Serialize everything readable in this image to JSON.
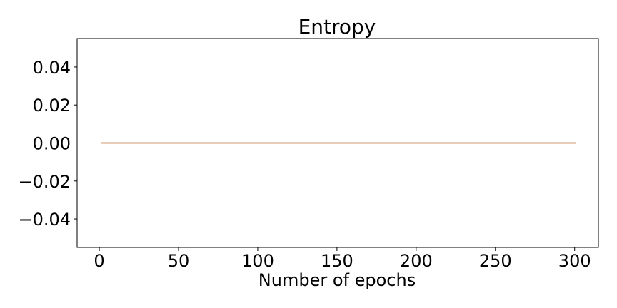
{
  "chart_data": {
    "type": "line",
    "title": "Entropy",
    "xlabel": "Number of epochs",
    "ylabel": "",
    "xlim": [
      -14,
      315
    ],
    "ylim": [
      -0.055,
      0.055
    ],
    "xticks": [
      0,
      50,
      100,
      150,
      200,
      250,
      300
    ],
    "xtick_labels": [
      "0",
      "50",
      "100",
      "150",
      "200",
      "250",
      "300"
    ],
    "yticks": [
      -0.04,
      -0.02,
      0.0,
      0.02,
      0.04
    ],
    "ytick_labels": [
      "−0.04",
      "−0.02",
      "0.00",
      "0.02",
      "0.04"
    ],
    "grid": false,
    "legend": "none",
    "series": [
      {
        "color": "#ff7f0e",
        "x": [
          1,
          50,
          100,
          150,
          200,
          250,
          301
        ],
        "y": [
          0,
          0,
          0,
          0,
          0,
          0,
          0
        ]
      },
      {
        "color": "#4a7fb5",
        "x": [
          1,
          50,
          100,
          150,
          200,
          250,
          301
        ],
        "y": [
          0,
          0,
          0,
          0,
          0,
          0,
          0
        ]
      }
    ]
  }
}
